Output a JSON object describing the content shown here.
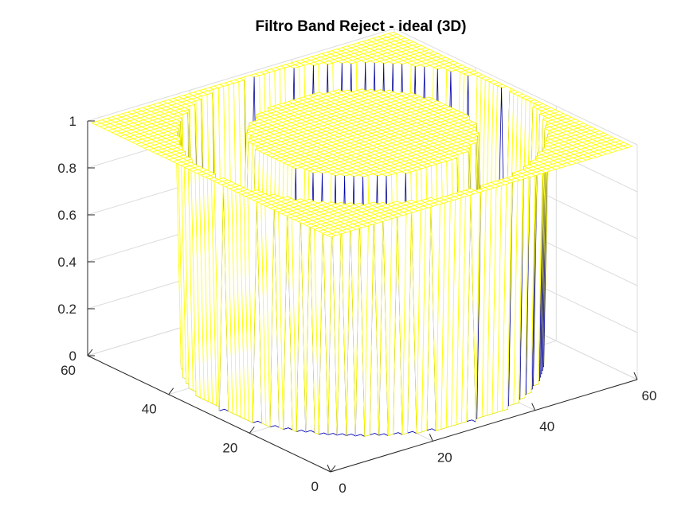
{
  "chart_data": {
    "type": "surface-mesh",
    "title": "Filtro Band Reject - ideal (3D)",
    "xlabel": "",
    "ylabel": "",
    "zlabel": "",
    "xlim": [
      0,
      60
    ],
    "ylim": [
      0,
      60
    ],
    "zlim": [
      0,
      1
    ],
    "x_ticks": [
      "0",
      "20",
      "40",
      "60"
    ],
    "y_ticks": [
      "0",
      "20",
      "40",
      "60"
    ],
    "z_ticks": [
      "0",
      "0.2",
      "0.4",
      "0.6",
      "0.8",
      "1"
    ],
    "grid": true,
    "colors": {
      "high": "#ffff00",
      "low": "#0000b4",
      "axes": "#262626",
      "grid": "#dcdcdc"
    },
    "grid_size": [
      60,
      60
    ],
    "filter": {
      "center": [
        30,
        30
      ],
      "stopband_inner_radius": 18,
      "stopband_outer_radius": 28,
      "value_in_band": 0,
      "value_outside_band": 1
    }
  }
}
